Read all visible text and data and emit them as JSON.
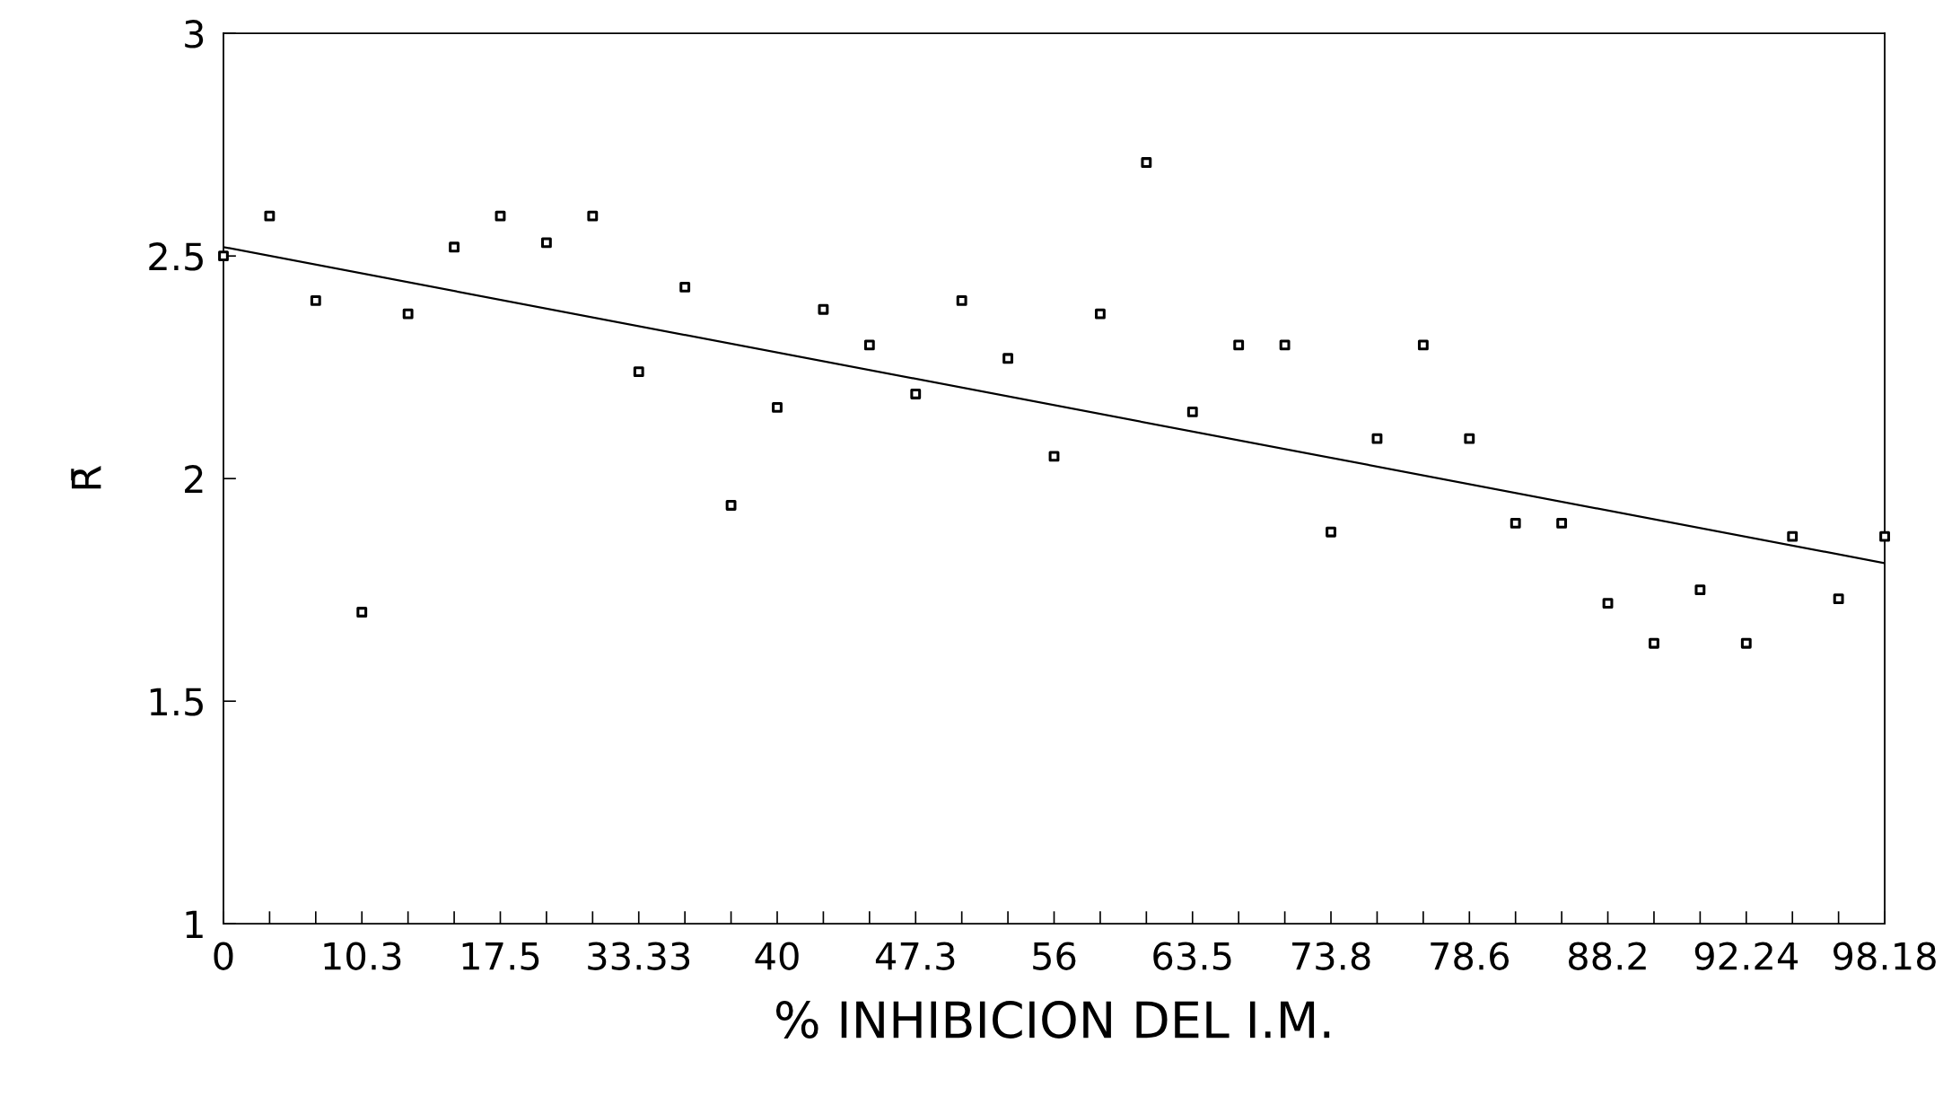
{
  "chart_data": {
    "type": "scatter",
    "xlabel": "% INHIBICION DEL I.M.",
    "ylabel": "R̄",
    "ylim": [
      1,
      3
    ],
    "categories": [
      "0",
      null,
      null,
      "10.3",
      null,
      null,
      "17.5",
      null,
      null,
      "33.33",
      null,
      null,
      "40",
      null,
      null,
      "47.3",
      null,
      null,
      "56",
      null,
      null,
      "63.5",
      null,
      null,
      "73.8",
      null,
      null,
      "78.6",
      null,
      null,
      "88.2",
      null,
      null,
      "92.24",
      null,
      null,
      "98.18"
    ],
    "yticks": [
      1,
      1.5,
      2,
      2.5,
      3
    ],
    "grid": false,
    "marker": "square",
    "series": [
      {
        "color": "#000000",
        "values": [
          2.5,
          2.59,
          2.4,
          1.7,
          2.37,
          2.52,
          2.59,
          2.53,
          2.59,
          2.24,
          2.43,
          1.94,
          2.16,
          2.38,
          2.3,
          2.19,
          2.4,
          2.27,
          2.05,
          2.37,
          2.71,
          2.15,
          2.3,
          2.3,
          1.88,
          2.09,
          2.3,
          2.09,
          1.9,
          1.9,
          1.72,
          1.63,
          1.75,
          1.63,
          1.87,
          1.73,
          1.87
        ]
      },
      {
        "type": "line",
        "color": "#000000",
        "marker": "none",
        "line_style": "solid",
        "x": [
          "0",
          "98.18"
        ],
        "values": [
          2.52,
          1.81
        ]
      }
    ]
  }
}
